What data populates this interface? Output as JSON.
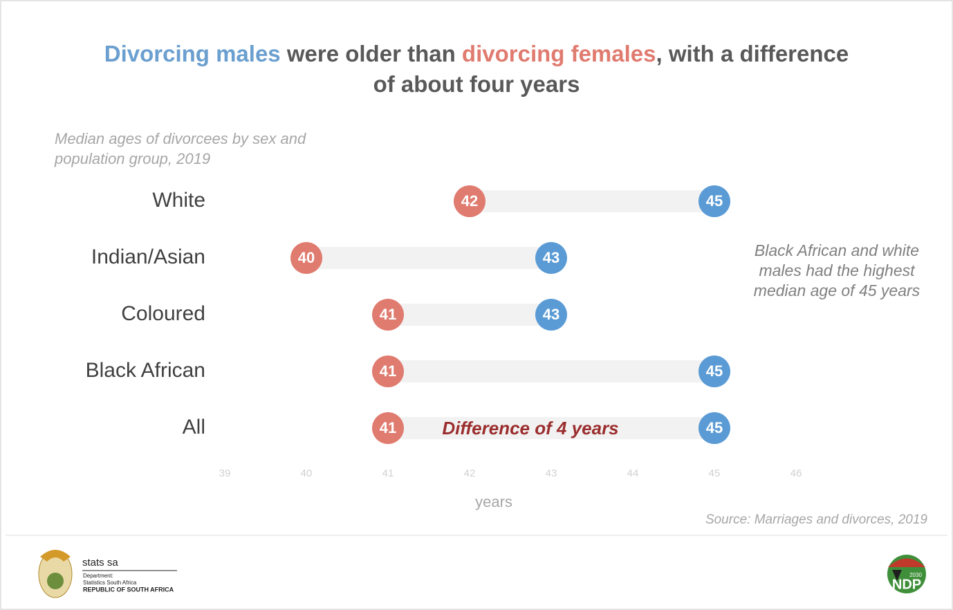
{
  "chart_data": {
    "type": "dumbbell",
    "title_lines": [
      [
        {
          "text": "Divorcing males",
          "color": "#6a9fcf"
        },
        {
          "text": " were older than ",
          "color": "#595959"
        },
        {
          "text": "divorcing females",
          "color": "#e07b6f"
        },
        {
          "text": ", with a difference",
          "color": "#595959"
        }
      ],
      [
        {
          "text": "of about four years",
          "color": "#595959"
        }
      ]
    ],
    "subtitle_lines": [
      "Median ages of divorcees by sex and",
      "population group, 2019"
    ],
    "categories": [
      "White",
      "Indian/Asian",
      "Coloured",
      "Black African",
      "All"
    ],
    "series": [
      {
        "color": "#e07b6f",
        "values": [
          42,
          40,
          41,
          41,
          41
        ]
      },
      {
        "color": "#5b9bd5",
        "values": [
          45,
          43,
          43,
          45,
          45
        ]
      }
    ],
    "xlim": [
      39,
      46
    ],
    "xticks": [
      39,
      40,
      41,
      42,
      43,
      44,
      45,
      46
    ],
    "xlabel": "years",
    "range_bar_color": "#f2f2f2",
    "difference_note": "Difference of 4 years",
    "side_note_lines": [
      "Black African and white",
      "males had the highest",
      "median age of 45 years"
    ],
    "source": "Source: Marriages and divorces, 2019"
  },
  "footer": {
    "org": "stats sa",
    "dept": "Department:",
    "dept_name": "Statistics South Africa",
    "country": "REPUBLIC OF SOUTH AFRICA",
    "ndp_year": "2030",
    "ndp": "NDP"
  }
}
